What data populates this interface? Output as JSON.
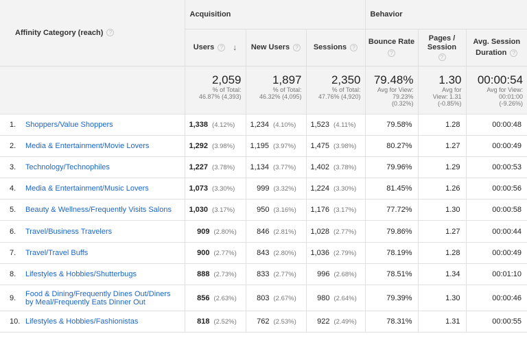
{
  "header": {
    "dimension_label": "Affinity Category (reach)",
    "group_acquisition": "Acquisition",
    "group_behavior": "Behavior",
    "columns": {
      "users": "Users",
      "new_users": "New Users",
      "sessions": "Sessions",
      "bounce_rate": "Bounce Rate",
      "pages_session_1": "Pages /",
      "pages_session_2": "Session",
      "avg_session_1": "Avg. Session",
      "avg_session_2": "Duration"
    },
    "help_glyph": "?",
    "sort_glyph": "↓"
  },
  "totals": {
    "users": {
      "value": "2,059",
      "line1": "% of Total:",
      "line2": "46.87% (4,393)"
    },
    "new_users": {
      "value": "1,897",
      "line1": "% of Total:",
      "line2": "46.32% (4,095)"
    },
    "sessions": {
      "value": "2,350",
      "line1": "% of Total:",
      "line2": "47.76% (4,920)"
    },
    "bounce_rate": {
      "value": "79.48%",
      "line1": "Avg for View:",
      "line2": "79.23%",
      "line3": "(0.32%)"
    },
    "pages_session": {
      "value": "1.30",
      "line1": "Avg for",
      "line2": "View: 1.31",
      "line3": "(-0.85%)"
    },
    "avg_session": {
      "value": "00:00:54",
      "line1": "Avg for View:",
      "line2": "00:01:00",
      "line3": "(-9.26%)"
    }
  },
  "rows": [
    {
      "idx": "1.",
      "category": "Shoppers/Value Shoppers",
      "users": "1,338",
      "users_pct": "(4.12%)",
      "new_users": "1,234",
      "new_users_pct": "(4.10%)",
      "sessions": "1,523",
      "sessions_pct": "(4.11%)",
      "bounce_rate": "79.58%",
      "pages_session": "1.28",
      "avg_session": "00:00:48"
    },
    {
      "idx": "2.",
      "category": "Media & Entertainment/Movie Lovers",
      "users": "1,292",
      "users_pct": "(3.98%)",
      "new_users": "1,195",
      "new_users_pct": "(3.97%)",
      "sessions": "1,475",
      "sessions_pct": "(3.98%)",
      "bounce_rate": "80.27%",
      "pages_session": "1.27",
      "avg_session": "00:00:49"
    },
    {
      "idx": "3.",
      "category": "Technology/Technophiles",
      "users": "1,227",
      "users_pct": "(3.78%)",
      "new_users": "1,134",
      "new_users_pct": "(3.77%)",
      "sessions": "1,402",
      "sessions_pct": "(3.78%)",
      "bounce_rate": "79.96%",
      "pages_session": "1.29",
      "avg_session": "00:00:53"
    },
    {
      "idx": "4.",
      "category": "Media & Entertainment/Music Lovers",
      "users": "1,073",
      "users_pct": "(3.30%)",
      "new_users": "999",
      "new_users_pct": "(3.32%)",
      "sessions": "1,224",
      "sessions_pct": "(3.30%)",
      "bounce_rate": "81.45%",
      "pages_session": "1.26",
      "avg_session": "00:00:56"
    },
    {
      "idx": "5.",
      "category": "Beauty & Wellness/Frequently Visits Salons",
      "users": "1,030",
      "users_pct": "(3.17%)",
      "new_users": "950",
      "new_users_pct": "(3.16%)",
      "sessions": "1,176",
      "sessions_pct": "(3.17%)",
      "bounce_rate": "77.72%",
      "pages_session": "1.30",
      "avg_session": "00:00:58"
    },
    {
      "idx": "6.",
      "category": "Travel/Business Travelers",
      "users": "909",
      "users_pct": "(2.80%)",
      "new_users": "846",
      "new_users_pct": "(2.81%)",
      "sessions": "1,028",
      "sessions_pct": "(2.77%)",
      "bounce_rate": "79.86%",
      "pages_session": "1.27",
      "avg_session": "00:00:44"
    },
    {
      "idx": "7.",
      "category": "Travel/Travel Buffs",
      "users": "900",
      "users_pct": "(2.77%)",
      "new_users": "843",
      "new_users_pct": "(2.80%)",
      "sessions": "1,036",
      "sessions_pct": "(2.79%)",
      "bounce_rate": "78.19%",
      "pages_session": "1.28",
      "avg_session": "00:00:49"
    },
    {
      "idx": "8.",
      "category": "Lifestyles & Hobbies/Shutterbugs",
      "users": "888",
      "users_pct": "(2.73%)",
      "new_users": "833",
      "new_users_pct": "(2.77%)",
      "sessions": "996",
      "sessions_pct": "(2.68%)",
      "bounce_rate": "78.51%",
      "pages_session": "1.34",
      "avg_session": "00:01:10"
    },
    {
      "idx": "9.",
      "category_line1": "Food & Dining/Frequently Dines Out/Diners",
      "category_line2": "by Meal/Frequently Eats Dinner Out",
      "users": "856",
      "users_pct": "(2.63%)",
      "new_users": "803",
      "new_users_pct": "(2.67%)",
      "sessions": "980",
      "sessions_pct": "(2.64%)",
      "bounce_rate": "79.39%",
      "pages_session": "1.30",
      "avg_session": "00:00:46"
    },
    {
      "idx": "10.",
      "category": "Lifestyles & Hobbies/Fashionistas",
      "users": "818",
      "users_pct": "(2.52%)",
      "new_users": "762",
      "new_users_pct": "(2.53%)",
      "sessions": "922",
      "sessions_pct": "(2.49%)",
      "bounce_rate": "78.31%",
      "pages_session": "1.31",
      "avg_session": "00:00:55"
    }
  ]
}
